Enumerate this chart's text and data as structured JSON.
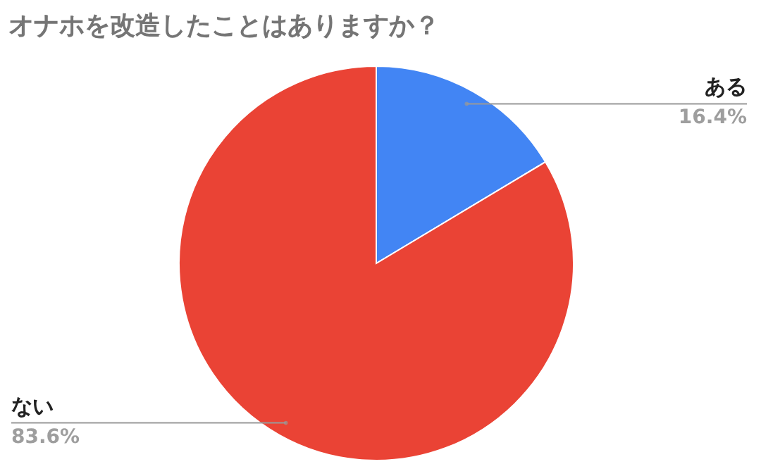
{
  "chart_data": {
    "type": "pie",
    "title": "オナホを改造したことはありますか？",
    "categories": [
      "ある",
      "ない"
    ],
    "values": [
      16.4,
      83.6
    ],
    "colors": [
      "#4285f4",
      "#ea4335"
    ],
    "value_labels": [
      "16.4%",
      "83.6%"
    ]
  }
}
